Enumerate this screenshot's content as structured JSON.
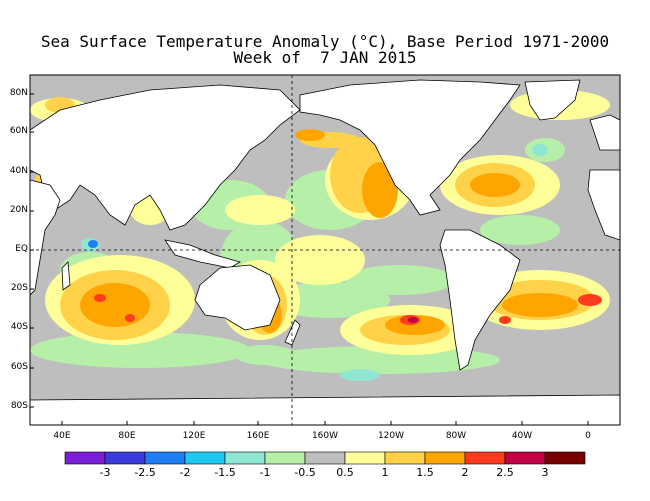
{
  "title": {
    "line1": "Sea Surface Temperature Anomaly (°C), Base Period 1971-2000",
    "line2": "Week of  7 JAN 2015"
  },
  "map": {
    "lat_labels": [
      "80N",
      "60N",
      "40N",
      "20N",
      "EQ",
      "20S",
      "40S",
      "60S",
      "80S"
    ],
    "lon_labels": [
      "40E",
      "80E",
      "120E",
      "160E",
      "160W",
      "120W",
      "80W",
      "40W",
      "0"
    ],
    "reference_lines": [
      "equator",
      "180 meridian"
    ],
    "land_color": "#ffffff",
    "no_anomaly_color": "#bebebe"
  },
  "colorbar": {
    "labels": [
      "-3",
      "-2.5",
      "-2",
      "-1.5",
      "-1",
      "-0.5",
      "0.5",
      "1",
      "1.5",
      "2",
      "2.5",
      "3"
    ],
    "colors": [
      "#7a1fd6",
      "#3b3bd9",
      "#1e7ff5",
      "#1fc8f0",
      "#8fe6d2",
      "#b6f0a8",
      "#bebebe",
      "#ffff99",
      "#ffd24a",
      "#ffa500",
      "#ff3b1f",
      "#c20045",
      "#7a0000"
    ]
  }
}
